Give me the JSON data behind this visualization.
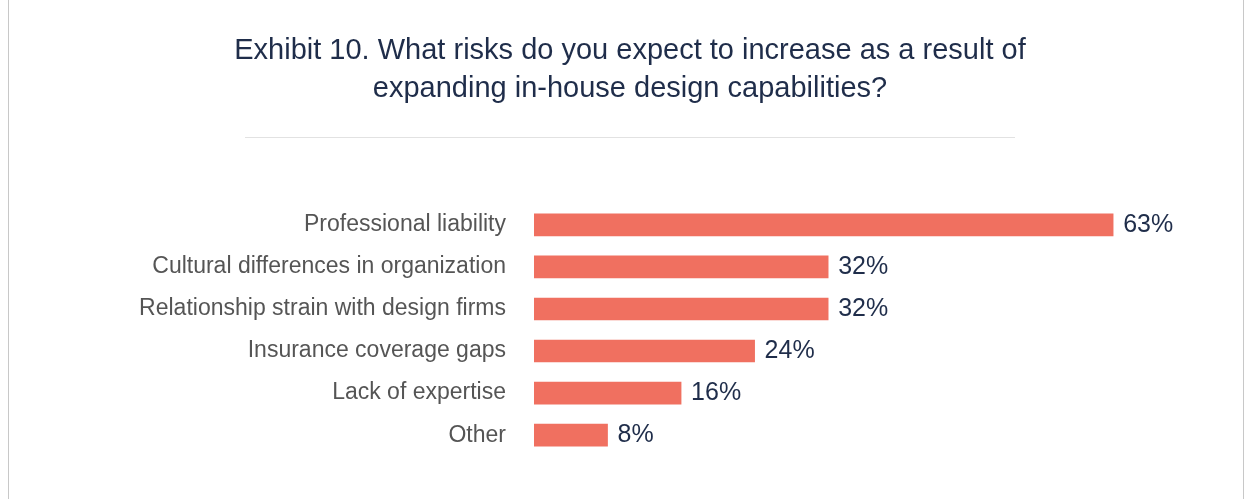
{
  "chart_data": {
    "type": "bar",
    "orientation": "horizontal",
    "title": "Exhibit 10. What risks do you expect to increase as a result of expanding in-house design capabilities?",
    "categories": [
      "Professional liability",
      "Cultural differences in organization",
      "Relationship strain with design firms",
      "Insurance coverage gaps",
      "Lack of expertise",
      "Other"
    ],
    "values": [
      63,
      32,
      32,
      24,
      16,
      8
    ],
    "value_labels": [
      "63%",
      "32%",
      "32%",
      "24%",
      "16%",
      "8%"
    ],
    "color": "#f07060"
  }
}
